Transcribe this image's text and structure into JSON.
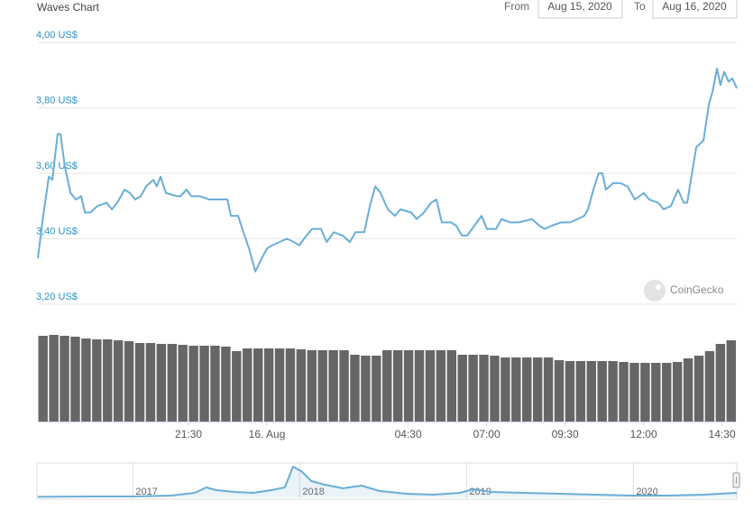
{
  "controls": {
    "from_label": "From",
    "from": "Aug 15, 2020",
    "to_label": "To",
    "to": "Aug 16, 2020"
  },
  "watermark": "CoinGecko",
  "chart_data": [
    {
      "type": "line",
      "title": "Waves Chart",
      "x": [
        -7.3,
        -7.13,
        -6.95,
        -6.84,
        -6.67,
        -6.58,
        -6.44,
        -6.26,
        -6.09,
        -5.92,
        -5.8,
        -5.63,
        -5.4,
        -5.11,
        -4.94,
        -4.77,
        -4.54,
        -4.37,
        -4.2,
        -4.02,
        -3.85,
        -3.62,
        -3.51,
        -3.39,
        -3.22,
        -2.87,
        -2.76,
        -2.56,
        -2.41,
        -2.13,
        -1.84,
        -1.49,
        -1.26,
        -1.15,
        -0.92,
        -0.75,
        -0.57,
        -0.37,
        -0.17,
        0,
        0.17,
        0.4,
        0.63,
        0.86,
        1.03,
        1.26,
        1.44,
        1.72,
        1.9,
        2.13,
        2.41,
        2.64,
        2.82,
        3.1,
        3.28,
        3.45,
        3.62,
        3.85,
        4.08,
        4.25,
        4.6,
        4.77,
        5.0,
        5.23,
        5.4,
        5.57,
        5.86,
        6.03,
        6.21,
        6.38,
        6.61,
        6.84,
        7.01,
        7.3,
        7.47,
        7.76,
        8.02,
        8.45,
        8.68,
        8.85,
        9.08,
        9.37,
        9.66,
        9.89,
        10.11,
        10.23,
        10.4,
        10.57,
        10.69,
        10.8,
        11.03,
        11.26,
        11.49,
        11.72,
        12.01,
        12.18,
        12.47,
        12.64,
        12.87,
        13.1,
        13.28,
        13.39,
        13.56,
        13.68,
        13.91,
        14.08,
        14.2,
        14.34,
        14.45,
        14.57,
        14.71,
        14.83,
        14.97
      ],
      "series": [
        {
          "color": "#6aaed6",
          "values": [
            3.34,
            3.47,
            3.59,
            3.58,
            3.72,
            3.72,
            3.62,
            3.54,
            3.52,
            3.53,
            3.48,
            3.48,
            3.5,
            3.51,
            3.49,
            3.51,
            3.55,
            3.54,
            3.52,
            3.53,
            3.56,
            3.58,
            3.56,
            3.59,
            3.54,
            3.53,
            3.53,
            3.55,
            3.53,
            3.53,
            3.52,
            3.52,
            3.52,
            3.47,
            3.47,
            3.42,
            3.37,
            3.3,
            3.34,
            3.37,
            3.38,
            3.39,
            3.4,
            3.39,
            3.38,
            3.41,
            3.43,
            3.43,
            3.39,
            3.42,
            3.41,
            3.39,
            3.42,
            3.42,
            3.5,
            3.56,
            3.54,
            3.49,
            3.47,
            3.49,
            3.48,
            3.46,
            3.48,
            3.51,
            3.52,
            3.45,
            3.45,
            3.44,
            3.41,
            3.41,
            3.44,
            3.47,
            3.43,
            3.43,
            3.46,
            3.45,
            3.45,
            3.46,
            3.44,
            3.43,
            3.44,
            3.45,
            3.45,
            3.46,
            3.47,
            3.49,
            3.55,
            3.6,
            3.6,
            3.55,
            3.57,
            3.57,
            3.56,
            3.52,
            3.54,
            3.52,
            3.51,
            3.49,
            3.5,
            3.55,
            3.51,
            3.51,
            3.61,
            3.68,
            3.7,
            3.81,
            3.85,
            3.92,
            3.87,
            3.91,
            3.88,
            3.89,
            3.86
          ]
        }
      ],
      "xlim": [
        -7.3,
        14.97
      ],
      "ylim": [
        3.2,
        4.0
      ],
      "yticks": [
        {
          "value": 3.2,
          "label": "3,20 US$"
        },
        {
          "value": 3.4,
          "label": "3,40 US$"
        },
        {
          "value": 3.6,
          "label": "3,60 US$"
        },
        {
          "value": 3.8,
          "label": "3,80 US$"
        },
        {
          "value": 4.0,
          "label": "4,00 US$"
        }
      ],
      "xticks": [
        {
          "value": -2.5,
          "label": "21:30"
        },
        {
          "value": 0,
          "label": "16. Aug"
        },
        {
          "value": 4.5,
          "label": "04:30"
        },
        {
          "value": 7,
          "label": "07:00"
        },
        {
          "value": 9.5,
          "label": "09:30"
        },
        {
          "value": 12,
          "label": "12:00"
        },
        {
          "value": 14.5,
          "label": "14:30"
        }
      ],
      "grid": true,
      "volume": {
        "color": "#666666",
        "values": [
          95,
          96,
          95,
          94,
          92,
          91,
          91,
          90,
          89,
          87,
          87,
          86,
          86,
          85,
          84,
          84,
          84,
          83,
          78,
          81,
          81,
          81,
          81,
          81,
          80,
          79,
          79,
          79,
          79,
          74,
          73,
          73,
          79,
          79,
          79,
          79,
          79,
          79,
          79,
          74,
          74,
          74,
          73,
          71,
          71,
          71,
          71,
          71,
          68,
          67,
          67,
          67,
          67,
          67,
          66,
          65,
          65,
          65,
          65,
          66,
          70,
          73,
          78,
          86,
          90
        ]
      }
    },
    {
      "type": "line",
      "x": [
        2016.43,
        2016.75,
        2017.0,
        2017.23,
        2017.37,
        2017.44,
        2017.5,
        2017.61,
        2017.72,
        2017.83,
        2017.91,
        2017.96,
        2018.01,
        2018.07,
        2018.15,
        2018.26,
        2018.37,
        2018.48,
        2018.64,
        2018.8,
        2018.96,
        2019.04,
        2019.15,
        2019.34,
        2019.56,
        2019.77,
        2019.99,
        2020.21,
        2020.42,
        2020.62
      ],
      "values": [
        0.3,
        0.5,
        0.5,
        1,
        2.5,
        5.5,
        4,
        3,
        2.5,
        4,
        5.5,
        17,
        14.5,
        9,
        7,
        5,
        6.5,
        3.5,
        2,
        1.5,
        2.5,
        4.5,
        3,
        2.5,
        2,
        1.5,
        1,
        1,
        1.5,
        2.5
      ],
      "color": "#6aaed6",
      "xlim": [
        2016.43,
        2020.62
      ],
      "ylim": [
        0,
        17
      ],
      "xticks": [
        2017,
        2018,
        2019,
        2020
      ]
    }
  ]
}
